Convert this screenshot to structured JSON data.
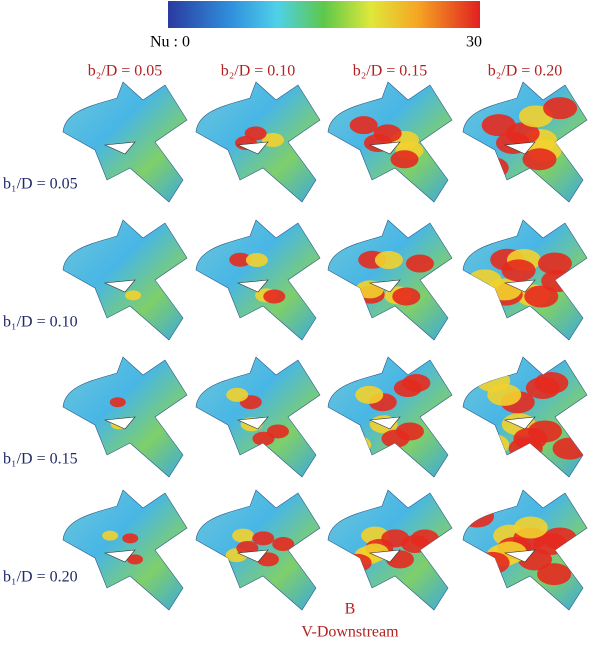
{
  "colorbar": {
    "min_label": "Nu : 0",
    "max_label": "30"
  },
  "columns": [
    "b₂/D = 0.05",
    "b₂/D = 0.10",
    "b₂/D = 0.15",
    "b₂/D = 0.20"
  ],
  "rows": [
    "b₁/D = 0.05",
    "b₁/D = 0.10",
    "b₁/D = 0.15",
    "b₁/D = 0.20"
  ],
  "caption": {
    "label": "B",
    "text": "V-Downstream"
  }
}
